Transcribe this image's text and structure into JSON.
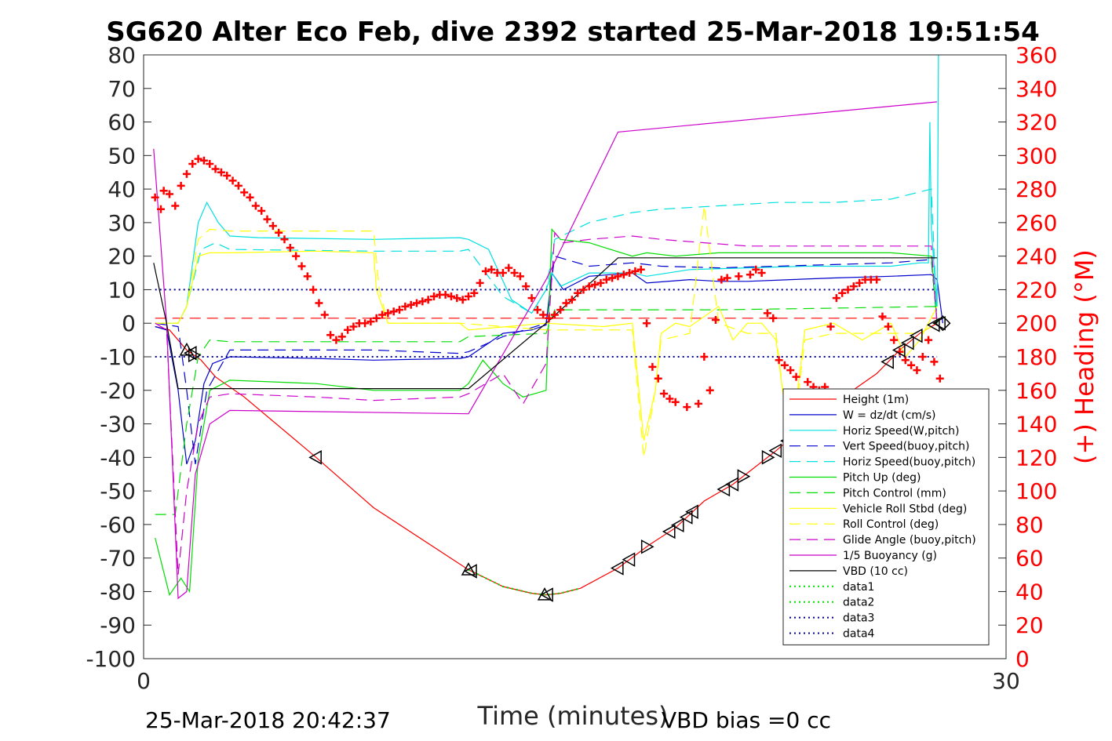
{
  "chart_data": {
    "type": "line",
    "title": "SG620 Alter Eco Feb, dive 2392 started 25-Mar-2018 19:51:54",
    "xlabel": "Time (minutes)",
    "ylabel_right": "(+) Heading (°M)",
    "xlim": [
      0,
      30
    ],
    "ylim": [
      -100,
      80
    ],
    "ylim_right": [
      0,
      360
    ],
    "x_ticks": [
      "0",
      "30"
    ],
    "y_ticks": [
      "80",
      "70",
      "60",
      "50",
      "40",
      "30",
      "20",
      "10",
      "0",
      "-10",
      "-20",
      "-30",
      "-40",
      "-50",
      "-60",
      "-70",
      "-80",
      "-90",
      "-100"
    ],
    "y_ticks_right": [
      "360",
      "340",
      "320",
      "300",
      "280",
      "260",
      "240",
      "220",
      "200",
      "180",
      "160",
      "140",
      "120",
      "100",
      "80",
      "60",
      "40",
      "20",
      "0"
    ],
    "footer_left": "25-Mar-2018 20:42:37",
    "footer_right": "VBD bias =0 cc",
    "legend_position": "bottom-right",
    "grid": false,
    "series": [
      {
        "name": "Height (1m)",
        "color": "#ff0000",
        "style": "solid",
        "axis": "left",
        "x": [
          0.4,
          0.9,
          1.5,
          2.0,
          2.5,
          3.5,
          6.0,
          8.0,
          11.3,
          12.5,
          13.5,
          14.0,
          14.5,
          15.2,
          16.5,
          17.6,
          18.5,
          19.5,
          20.5,
          22.0,
          23.5,
          24.5,
          25.5,
          26.3,
          27.0,
          27.6
        ],
        "y": [
          -1,
          -2,
          -8,
          -11,
          -16,
          -22,
          -40,
          -55,
          -73.5,
          -78.5,
          -80.5,
          -81,
          -80.5,
          -79,
          -73,
          -66,
          -61,
          -53,
          -48,
          -38,
          -27,
          -21,
          -15,
          -8,
          -3,
          0
        ]
      },
      {
        "name": "W = dz/dt (cm/s)",
        "color": "#0000cd",
        "style": "solid",
        "axis": "left",
        "x": [
          0.4,
          0.8,
          1.2,
          1.5,
          1.8,
          2.1,
          2.4,
          3.0,
          6.0,
          8.0,
          11.0,
          11.3,
          12.5,
          13.5,
          14.0,
          14.2,
          14.6,
          15.5,
          17.0,
          17.5,
          19.0,
          20.0,
          21.0,
          22.5,
          24.0,
          26.0,
          27.4,
          27.6,
          27.8
        ],
        "y": [
          -1,
          -2,
          -20,
          -42,
          -35,
          -18,
          -12,
          -10,
          -10.5,
          -11,
          -10.5,
          -10,
          -3,
          -2,
          -0.5,
          15,
          10,
          14,
          15,
          12,
          13,
          12.5,
          12.5,
          13,
          13.5,
          14,
          14.5,
          13,
          0
        ]
      },
      {
        "name": "Horiz Speed(W,pitch)",
        "color": "#00e0e0",
        "style": "solid",
        "axis": "left",
        "x": [
          0.4,
          1.2,
          1.5,
          1.9,
          2.2,
          2.6,
          3.0,
          4.0,
          8.0,
          11.0,
          11.3,
          12.0,
          12.8,
          13.5,
          14.0,
          14.2,
          14.5,
          15.5,
          17.0,
          17.5,
          19.0,
          21.0,
          23.0,
          25.0,
          26.0,
          27.0,
          27.3,
          27.35,
          27.4,
          27.6,
          27.65
        ],
        "y": [
          0,
          0,
          5,
          30,
          36,
          30,
          26,
          25.5,
          25,
          25.5,
          25,
          22,
          7,
          3,
          10,
          15,
          11,
          15,
          15,
          14,
          16,
          16.5,
          17,
          17,
          17,
          18,
          18,
          60,
          28,
          5,
          80
        ]
      },
      {
        "name": "Vert Speed(buoy,pitch)",
        "color": "#0000cd",
        "style": "dashed",
        "axis": "left",
        "x": [
          0.4,
          1.2,
          1.5,
          1.8,
          2.2,
          3.0,
          8.0,
          11.0,
          11.3,
          12.5,
          14.0,
          14.3,
          15.5,
          17.0,
          18.0,
          20.0,
          22.0,
          24.0,
          26.0,
          27.4,
          27.6
        ],
        "y": [
          0,
          -1,
          -20,
          -42,
          -20,
          -8,
          -8,
          -9,
          -8.5,
          -4,
          0,
          20,
          17,
          18,
          17,
          16.5,
          17,
          17.5,
          18,
          19,
          0
        ]
      },
      {
        "name": "Horiz Speed(buoy,pitch)",
        "color": "#00e0e0",
        "style": "dashed",
        "axis": "left",
        "x": [
          0.4,
          1.2,
          1.5,
          2.0,
          2.5,
          3.0,
          8.0,
          11.0,
          11.3,
          12.5,
          13.5,
          14.0,
          14.3,
          15.5,
          17.0,
          18.0,
          20.0,
          22.0,
          24.0,
          26.0,
          27.4,
          27.6
        ],
        "y": [
          0,
          0,
          5,
          22,
          24,
          22,
          21.5,
          21.5,
          22,
          8,
          3,
          10,
          25,
          30,
          33,
          34,
          35,
          36,
          36,
          37,
          40,
          0
        ]
      },
      {
        "name": "Pitch Up (deg)",
        "color": "#00dd00",
        "style": "solid",
        "axis": "left",
        "x": [
          0.4,
          0.9,
          1.3,
          1.6,
          1.9,
          2.3,
          3.0,
          6.0,
          8.0,
          11.0,
          11.3,
          11.8,
          12.5,
          13.2,
          14.0,
          14.2,
          14.5,
          15.5,
          17.0,
          17.5,
          18.5,
          20.0,
          22.0,
          24.0,
          26.0,
          27.4,
          27.6
        ],
        "y": [
          -64,
          -81,
          -76,
          -80,
          -40,
          -20,
          -17,
          -18,
          -20,
          -20,
          -18,
          -11,
          -18,
          -22,
          -20,
          28,
          25,
          24,
          20,
          21,
          20,
          21,
          21,
          21,
          21,
          20,
          0
        ]
      },
      {
        "name": "Pitch Control (mm)",
        "color": "#00dd00",
        "style": "dashed",
        "axis": "left",
        "x": [
          0.4,
          1.1,
          1.5,
          1.9,
          2.3,
          3.0,
          11.0,
          11.3,
          14.0,
          14.3,
          16.0,
          20.0,
          24.0,
          27.6
        ],
        "y": [
          -57,
          -57,
          -30,
          -10,
          -5,
          -5.5,
          -5.5,
          -4,
          -3,
          4,
          4,
          4,
          4.5,
          5
        ]
      },
      {
        "name": "Vehicle Roll Stbd (deg)",
        "color": "#ffff00",
        "style": "solid",
        "axis": "left",
        "x": [
          0.4,
          1.2,
          1.5,
          1.9,
          2.3,
          3.0,
          6.0,
          8.0,
          8.1,
          8.5,
          11.0,
          11.3,
          14.0,
          16.0,
          17.0,
          17.4,
          17.8,
          18.0,
          18.5,
          19.0,
          20.0,
          20.5,
          21.0,
          21.5,
          22.0,
          22.5,
          23.0,
          24.0,
          25.0,
          26.0,
          26.5,
          27.0,
          27.6
        ],
        "y": [
          0,
          0,
          5,
          20,
          21,
          21,
          21.5,
          21,
          10,
          0,
          0,
          -2,
          0,
          -1,
          0,
          -35,
          -20,
          -3,
          0,
          -1,
          5,
          -5,
          0,
          0,
          -5,
          -38,
          -2,
          0,
          -5,
          0,
          -10,
          -5,
          5
        ]
      },
      {
        "name": "Roll Control (deg)",
        "color": "#ffff00",
        "style": "dashed",
        "axis": "left",
        "x": [
          0.4,
          1.2,
          1.5,
          1.9,
          2.3,
          3.0,
          8.0,
          8.2,
          8.5,
          11.0,
          14.0,
          16.0,
          17.0,
          17.4,
          17.8,
          18.0,
          19.0,
          19.5,
          20.0,
          21.0,
          22.0,
          22.5,
          23.0,
          24.0,
          25.0,
          26.0,
          27.0,
          27.6
        ],
        "y": [
          0,
          0,
          5,
          25,
          28,
          27.5,
          27.5,
          10,
          0,
          0,
          -2,
          -2,
          -2,
          -40,
          -20,
          -5,
          -3,
          35,
          0,
          -3,
          -3,
          -40,
          -5,
          -3,
          -3,
          -3,
          -3,
          0
        ]
      },
      {
        "name": "Glide Angle (buoy,pitch)",
        "color": "#cc00cc",
        "style": "dashed",
        "axis": "left",
        "x": [
          0.4,
          0.8,
          1.2,
          1.5,
          1.9,
          2.3,
          3.0,
          6.0,
          8.0,
          11.0,
          11.3,
          12.5,
          13.2,
          14.0,
          14.3,
          14.6,
          15.5,
          17.0,
          18.0,
          19.5,
          21.0,
          22.5,
          24.0,
          26.0,
          27.4,
          27.6
        ],
        "y": [
          0,
          -2,
          -75,
          -50,
          -30,
          -22,
          -21,
          -22,
          -23,
          -22,
          -21,
          -15,
          -24,
          -12,
          27,
          24,
          25,
          26,
          25,
          24,
          23,
          23,
          23,
          23,
          23,
          0
        ]
      },
      {
        "name": "1/5 Buoyancy (g)",
        "color": "#cc00cc",
        "style": "solid",
        "axis": "left",
        "x": [
          0.35,
          0.5,
          0.8,
          1.2,
          1.5,
          1.8,
          2.3,
          3.0,
          11.3,
          14.0,
          16.5,
          27.6
        ],
        "y": [
          52,
          35,
          0,
          -82,
          -80,
          -45,
          -30,
          -26,
          -27,
          13,
          57,
          66
        ]
      },
      {
        "name": "VBD (10 cc)",
        "color": "#000000",
        "style": "solid",
        "axis": "left",
        "x": [
          0.35,
          0.8,
          1.2,
          2.0,
          4.0,
          8.0,
          11.3,
          14.0,
          16.5,
          27.6
        ],
        "y": [
          18,
          0,
          -19.5,
          -19.5,
          -19.5,
          -19.5,
          -19.5,
          0,
          19.5,
          19.5
        ]
      },
      {
        "name": "data1",
        "color": "#00dd00",
        "style": "dotted",
        "axis": "left",
        "x": [
          11.3,
          12.5,
          13.5,
          14.0,
          14.5,
          15.2
        ],
        "y": [
          -73.5,
          -78.5,
          -80.5,
          -81,
          -80.5,
          -79
        ]
      },
      {
        "name": "data2",
        "color": "#00dd00",
        "style": "dotted",
        "axis": "left",
        "x": [
          11.3,
          12.5,
          13.5,
          14.0,
          14.5,
          15.2
        ],
        "y": [
          -73.5,
          -78.5,
          -80.5,
          -81,
          -80.5,
          -79
        ]
      },
      {
        "name": "data3",
        "color": "#00008b",
        "style": "dotted",
        "axis": "left",
        "x": [
          0.4,
          27.6
        ],
        "y": [
          10,
          10
        ]
      },
      {
        "name": "data4",
        "color": "#00008b",
        "style": "dotted",
        "axis": "left",
        "x": [
          0.4,
          27.6
        ],
        "y": [
          -10,
          -10
        ]
      }
    ],
    "extra_lines": [
      {
        "color": "#ff0000",
        "style": "dashed",
        "axis": "left",
        "x": [
          0.4,
          27.6
        ],
        "y": [
          1.5,
          1.5
        ]
      }
    ],
    "heading": {
      "color": "#ff0000",
      "marker": "+",
      "axis": "right",
      "x": [
        0.4,
        0.6,
        0.7,
        0.9,
        1.1,
        1.3,
        1.5,
        1.7,
        1.9,
        2.1,
        2.3,
        2.5,
        2.7,
        2.9,
        3.1,
        3.3,
        3.5,
        3.7,
        3.9,
        4.1,
        4.3,
        4.5,
        4.7,
        4.9,
        5.1,
        5.3,
        5.5,
        5.7,
        5.9,
        6.1,
        6.3,
        6.5,
        6.7,
        6.9,
        7.1,
        7.3,
        7.5,
        7.7,
        7.9,
        8.1,
        8.3,
        8.5,
        8.7,
        8.9,
        9.1,
        9.3,
        9.5,
        9.7,
        9.9,
        10.1,
        10.3,
        10.5,
        10.7,
        10.9,
        11.1,
        11.3,
        11.5,
        11.7,
        11.9,
        12.1,
        12.3,
        12.5,
        12.7,
        12.9,
        13.1,
        13.3,
        13.5,
        13.7,
        13.9,
        14.1,
        14.3,
        14.5,
        14.7,
        14.9,
        15.1,
        15.3,
        15.5,
        15.7,
        15.9,
        16.1,
        16.3,
        16.5,
        16.7,
        16.9,
        17.1,
        17.3,
        17.5,
        17.7,
        17.9,
        18.1,
        18.3,
        18.5,
        18.9,
        19.3,
        19.5,
        19.7,
        19.9,
        20.1,
        20.3,
        20.7,
        21.1,
        21.3,
        21.5,
        21.7,
        21.9,
        22.1,
        22.3,
        22.5,
        22.7,
        23.1,
        23.3,
        23.5,
        23.7,
        23.9,
        24.1,
        24.3,
        24.5,
        24.7,
        24.9,
        25.1,
        25.3,
        25.5,
        25.7,
        25.9,
        26.1,
        26.3,
        26.5,
        26.7,
        26.9,
        27.1,
        27.3,
        27.5,
        27.7
      ],
      "y": [
        275,
        268,
        279,
        277,
        270,
        282,
        289,
        295,
        298,
        297,
        295,
        292,
        290,
        288,
        285,
        282,
        278,
        275,
        270,
        267,
        262,
        258,
        254,
        250,
        245,
        240,
        234,
        228,
        220,
        212,
        205,
        193,
        190,
        192,
        196,
        198,
        200,
        200,
        201,
        203,
        205,
        206,
        207,
        208,
        210,
        211,
        212,
        213,
        214,
        216,
        217,
        217,
        216,
        215,
        214,
        216,
        218,
        224,
        231,
        232,
        230,
        230,
        233,
        230,
        228,
        222,
        215,
        208,
        205,
        203,
        205,
        208,
        212,
        214,
        218,
        220,
        222,
        223,
        224,
        226,
        227,
        228,
        229,
        230,
        231,
        232,
        200,
        174,
        167,
        158,
        155,
        153,
        150,
        152,
        180,
        160,
        202,
        226,
        227,
        228,
        229,
        232,
        230,
        206,
        203,
        178,
        175,
        172,
        168,
        165,
        162,
        160,
        162,
        198,
        215,
        218,
        220,
        222,
        224,
        226,
        226,
        226,
        204,
        198,
        190,
        183,
        178,
        175,
        172,
        180,
        190,
        177,
        167
      ]
    }
  }
}
